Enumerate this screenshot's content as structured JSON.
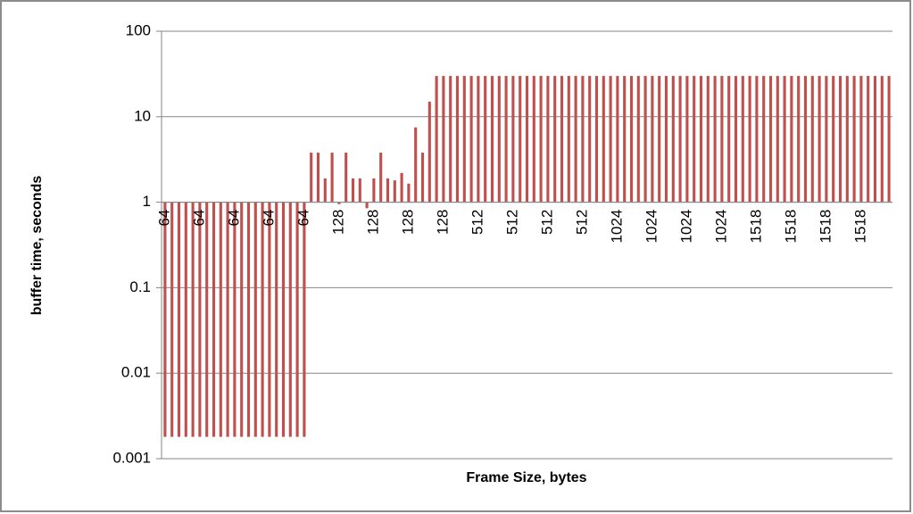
{
  "chart_data": {
    "type": "bar",
    "x_label": "Frame Size, bytes",
    "y_label": "buffer time, seconds",
    "categories": [
      "64",
      null,
      null,
      null,
      null,
      "64",
      null,
      null,
      null,
      null,
      "64",
      null,
      null,
      null,
      null,
      "64",
      null,
      null,
      null,
      null,
      "64",
      null,
      null,
      null,
      null,
      "128",
      null,
      null,
      null,
      null,
      "128",
      null,
      null,
      null,
      null,
      "128",
      null,
      null,
      null,
      null,
      "128",
      null,
      null,
      null,
      null,
      "512",
      null,
      null,
      null,
      null,
      "512",
      null,
      null,
      null,
      null,
      "512",
      null,
      null,
      null,
      null,
      "512",
      null,
      null,
      null,
      null,
      "1024",
      null,
      null,
      null,
      null,
      "1024",
      null,
      null,
      null,
      null,
      "1024",
      null,
      null,
      null,
      null,
      "1024",
      null,
      null,
      null,
      null,
      "1518",
      null,
      null,
      null,
      null,
      "1518",
      null,
      null,
      null,
      null,
      "1518",
      null,
      null,
      null,
      null,
      "1518",
      null,
      null,
      null,
      null
    ],
    "values": [
      0.0018,
      0.0018,
      0.0018,
      0.0018,
      0.0018,
      0.0018,
      0.0018,
      0.0018,
      0.0018,
      0.0018,
      0.0018,
      0.0018,
      0.0018,
      0.0018,
      0.0018,
      0.0018,
      0.0018,
      0.0018,
      0.0018,
      0.0018,
      0.0018,
      3.8,
      3.8,
      1.9,
      3.8,
      0.95,
      3.8,
      1.9,
      1.9,
      0.85,
      1.9,
      3.8,
      1.9,
      1.8,
      2.2,
      1.65,
      7.5,
      3.8,
      15,
      30,
      30,
      30,
      30,
      30,
      30,
      30,
      30,
      30,
      30,
      30,
      30,
      30,
      30,
      30,
      30,
      30,
      30,
      30,
      30,
      30,
      30,
      30,
      30,
      30,
      30,
      30,
      30,
      30,
      30,
      30,
      30,
      30,
      30,
      30,
      30,
      30,
      30,
      30,
      30,
      30,
      30,
      30,
      30,
      30,
      30,
      30,
      30,
      30,
      30,
      30,
      30,
      30,
      30,
      30,
      30,
      30,
      30,
      30,
      30,
      30,
      30,
      30,
      30,
      30,
      30
    ],
    "color": "#c0504d",
    "log_scale": true,
    "x_axis_crosses_at": 1,
    "ylim": [
      0.001,
      100
    ],
    "yticks": [
      100,
      10,
      1,
      0.1,
      0.01,
      0.001
    ],
    "grid": true
  }
}
